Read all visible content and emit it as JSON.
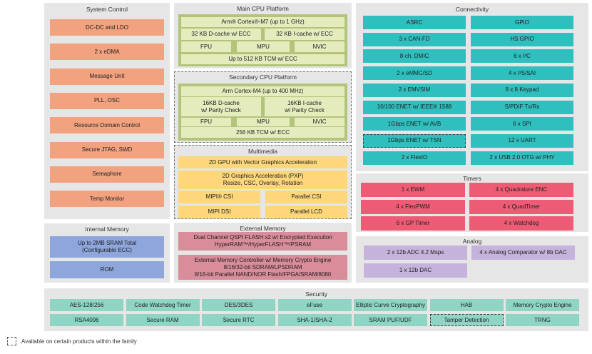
{
  "colors": {
    "system_control": "#f2a27e",
    "internal_memory": "#8ea6dc",
    "cpu_outer": "#b3c47a",
    "cpu_inner": "#e4ebbd",
    "multimedia": "#fdd77a",
    "external_memory": "#d98c99",
    "connectivity": "#2fbfbe",
    "timers": "#ee5b74",
    "analog": "#c6b3dc",
    "security": "#8fd5c4",
    "panel": "#e6e6e6"
  },
  "system_control": {
    "title": "System Control",
    "items": [
      "DC-DC and LDO",
      "2 x eDMA",
      "Message Unit",
      "PLL, OSC",
      "Resource Domain Control",
      "Secure JTAG, SWD",
      "Semaphore",
      "Temp Monitor"
    ]
  },
  "internal_memory": {
    "title": "Internal Memory",
    "items": [
      "Up to 2MB SRAM Total\n(Configurable ECC)",
      "ROM"
    ]
  },
  "main_cpu": {
    "title": "Main CPU Platform",
    "core": "Arm® Cortex®-M7 (up to 1 GHz)",
    "dcache": "32 KB D-cache w/ ECC",
    "icache": "32 KB I-cache w/ ECC",
    "fpu": "FPU",
    "mpu": "MPU",
    "nvic": "NVIC",
    "tcm": "Up to 512 KB TCM w/ ECC"
  },
  "secondary_cpu": {
    "title": "Secondary CPU Platform",
    "core": "Arm Cortex-M4 (up to 400 MHz)",
    "dcache": "16KB D-cache\nw/ Parity Check",
    "icache": "16KB I-cache\nw/ Parity Check",
    "fpu": "FPU",
    "mpu": "MPU",
    "nvic": "NVIC",
    "tcm": "256 KB TCM w/ ECC"
  },
  "multimedia": {
    "title": "Multimedia",
    "gpu": "2D GPU with Vector Graphics Acceleration",
    "pxp": "2D Graphics Acceleration (PXP)\nResize, CSC, Overlay, Rotation",
    "mipi_csi": "MIPI® CSI",
    "parallel_csi": "Parallel CSI",
    "mipi_dsi": "MIPI DSI",
    "parallel_lcd": "Parallel LCD"
  },
  "external_memory": {
    "title": "External Memory",
    "items": [
      "Dual Channel QSPI FLASH x2 w/ Encrypted Execution\nHyperRAM™/HyperFLASH™/PSRAM",
      "External Memory Controller w/ Memory Crypto Engine\n8/16/32-bit SDRAM/LPSDRAM\n8/16-bit Parallel NAND/NOR Flash/FPGA/SRAM/8080"
    ]
  },
  "connectivity": {
    "title": "Connectivity",
    "left": [
      "ASRC",
      "3 x CAN-FD",
      "8-ch. DMIC",
      "2 x eMMC/SD",
      "2 x EMVSIM",
      "10/100 ENET w/ IEEE® 1588",
      "1Gbps ENET w/ AVB",
      "1Gbps ENET w/ TSN",
      "2 x FlexIO"
    ],
    "right": [
      "GPIO",
      "HS GPIO",
      "6 x I²C",
      "4 x I²S/SAI",
      "8 x 8 Keypad",
      "S/PDIF Tx/Rx",
      "6 x SPI",
      "12 x UART",
      "2 x USB 2.0 OTG w/ PHY"
    ],
    "optional_left_index": 7
  },
  "timers": {
    "title": "Timers",
    "left": [
      "1 x EWM",
      "4 x FlexPWM",
      "6 x GP Timer"
    ],
    "right": [
      "4 x Quadrature ENC",
      "4 x QuadTimer",
      "4 x Watchdog"
    ]
  },
  "analog": {
    "title": "Analog",
    "items": [
      "2 x 12b ADC 4.2 Msps",
      "4 x Analog Comparator w/ 8b DAC",
      "1 x 12b DAC"
    ]
  },
  "security": {
    "title": "Security",
    "row1": [
      "AES-128/256",
      "Code Watchdog Timer",
      "DES/3DES",
      "eFuse",
      "Elliptic Curve Cryptography",
      "HAB",
      "Memory Crypto Engine"
    ],
    "row2": [
      "RSA4096",
      "Secure RAM",
      "Secure RTC",
      "SHA-1/SHA-2",
      "SRAM PUF/UDF",
      "Tamper Detection",
      "TRNG"
    ],
    "optional_row2_index": 5
  },
  "legend": {
    "text": "Available on certain products within the family"
  }
}
